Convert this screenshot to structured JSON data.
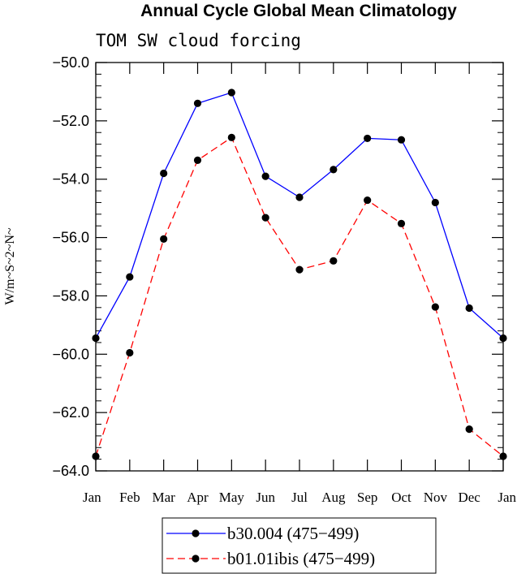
{
  "chart_data": {
    "type": "line",
    "title": "Annual Cycle Global Mean Climatology",
    "subtitle": "TOM SW cloud forcing",
    "ylabel": "W/m~S~2~N~",
    "xlabel": "",
    "categories": [
      "Jan",
      "Feb",
      "Mar",
      "Apr",
      "May",
      "Jun",
      "Jul",
      "Aug",
      "Sep",
      "Oct",
      "Nov",
      "Dec",
      "Jan"
    ],
    "ylim": [
      -64.0,
      -50.0
    ],
    "yticks": [
      -50.0,
      -52.0,
      -54.0,
      -56.0,
      -58.0,
      -60.0,
      -62.0,
      -64.0
    ],
    "ytick_labels": [
      "−50.0",
      "−52.0",
      "−54.0",
      "−56.0",
      "−58.0",
      "−60.0",
      "−62.0",
      "−64.0"
    ],
    "series": [
      {
        "name": "b30.004 (475−499)",
        "color": "#0000ff",
        "dash": "solid",
        "values": [
          -59.45,
          -57.35,
          -53.8,
          -51.4,
          -51.03,
          -53.9,
          -54.62,
          -53.67,
          -52.6,
          -52.65,
          -54.8,
          -58.42,
          -59.45
        ]
      },
      {
        "name": "b01.01ibis (475−499)",
        "color": "#ff0000",
        "dash": "dashed",
        "values": [
          -63.5,
          -59.95,
          -56.05,
          -53.35,
          -52.57,
          -55.32,
          -57.1,
          -56.8,
          -54.72,
          -55.52,
          -58.38,
          -62.57,
          -63.5
        ]
      }
    ],
    "legend": "bottom-center",
    "grid": false
  }
}
